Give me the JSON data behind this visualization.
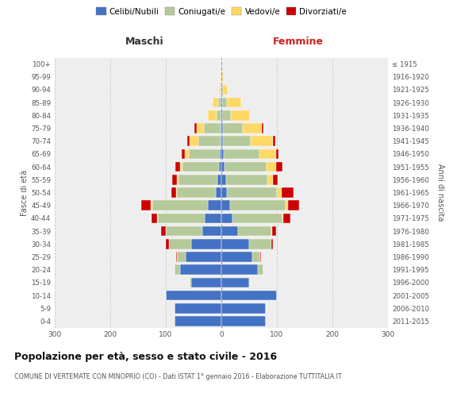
{
  "age_groups": [
    "0-4",
    "5-9",
    "10-14",
    "15-19",
    "20-24",
    "25-29",
    "30-34",
    "35-39",
    "40-44",
    "45-49",
    "50-54",
    "55-59",
    "60-64",
    "65-69",
    "70-74",
    "75-79",
    "80-84",
    "85-89",
    "90-94",
    "95-99",
    "100+"
  ],
  "birth_years": [
    "2011-2015",
    "2006-2010",
    "2001-2005",
    "1996-2000",
    "1991-1995",
    "1986-1990",
    "1981-1985",
    "1976-1980",
    "1971-1975",
    "1966-1970",
    "1961-1965",
    "1956-1960",
    "1951-1955",
    "1946-1950",
    "1941-1945",
    "1936-1940",
    "1931-1935",
    "1926-1930",
    "1921-1925",
    "1916-1920",
    "≤ 1915"
  ],
  "maschi": {
    "celibi": [
      85,
      85,
      100,
      55,
      75,
      65,
      55,
      35,
      30,
      25,
      10,
      7,
      5,
      3,
      2,
      2,
      1,
      1,
      0,
      0,
      0
    ],
    "coniugati": [
      0,
      0,
      0,
      2,
      10,
      15,
      40,
      65,
      85,
      100,
      70,
      70,
      65,
      55,
      40,
      30,
      8,
      5,
      1,
      0,
      0
    ],
    "vedovi": [
      0,
      0,
      0,
      0,
      0,
      0,
      0,
      0,
      1,
      2,
      2,
      3,
      5,
      8,
      15,
      12,
      15,
      10,
      3,
      1,
      0
    ],
    "divorziati": [
      0,
      0,
      0,
      0,
      0,
      2,
      5,
      8,
      10,
      18,
      8,
      8,
      8,
      5,
      5,
      5,
      0,
      0,
      0,
      0,
      0
    ]
  },
  "femmine": {
    "nubili": [
      80,
      80,
      100,
      50,
      65,
      55,
      50,
      30,
      20,
      15,
      10,
      8,
      6,
      4,
      3,
      3,
      2,
      2,
      0,
      0,
      0
    ],
    "coniugate": [
      0,
      0,
      0,
      2,
      10,
      15,
      40,
      60,
      90,
      100,
      90,
      75,
      75,
      65,
      50,
      35,
      15,
      8,
      3,
      1,
      0
    ],
    "vedove": [
      0,
      0,
      0,
      0,
      0,
      0,
      0,
      1,
      2,
      5,
      8,
      10,
      18,
      30,
      40,
      35,
      35,
      25,
      8,
      3,
      2
    ],
    "divorziate": [
      0,
      0,
      0,
      0,
      0,
      1,
      3,
      8,
      12,
      20,
      22,
      9,
      11,
      4,
      4,
      3,
      0,
      0,
      0,
      0,
      0
    ]
  },
  "colors": {
    "celibi": "#4472c4",
    "coniugati": "#b5c99a",
    "vedovi": "#ffd966",
    "divorziati": "#cc0000"
  },
  "title": "Popolazione per età, sesso e stato civile - 2016",
  "subtitle": "COMUNE DI VERTEMATE CON MINOPRIO (CO) - Dati ISTAT 1° gennaio 2016 - Elaborazione TUTTITALIA.IT",
  "xlabel_left": "Maschi",
  "xlabel_right": "Femmine",
  "ylabel_left": "Fasce di età",
  "ylabel_right": "Anni di nascita",
  "xlim": 300,
  "bg_color": "#ffffff",
  "ax_bg_color": "#eeeeee",
  "grid_color": "#cccccc"
}
